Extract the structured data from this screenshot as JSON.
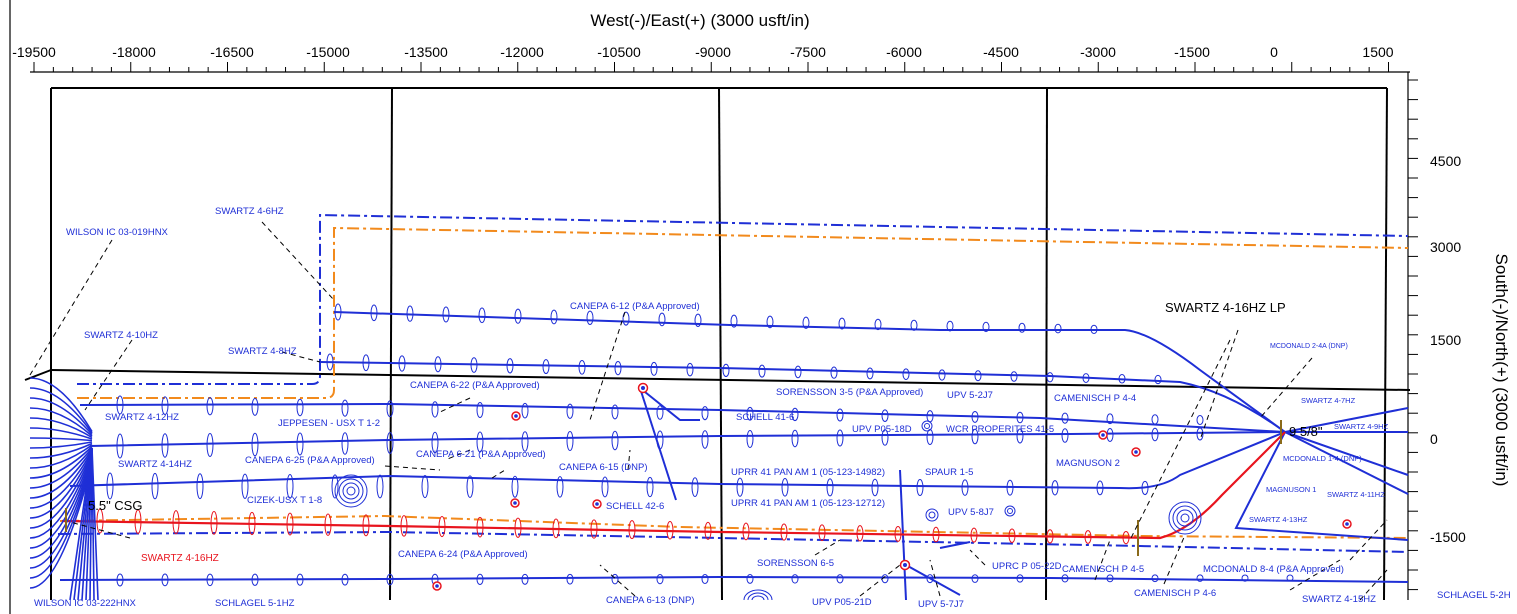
{
  "axes": {
    "top_title": "West(-)/East(+) (3000 usft/in)",
    "right_title": "South(-)/North(+) (3000 usft/in)",
    "x_ticks": [
      "-19500",
      "-18000",
      "-16500",
      "-15000",
      "-13500",
      "-12000",
      "-10500",
      "-9000",
      "-7500",
      "-6000",
      "-4500",
      "-3000",
      "-1500",
      "0",
      "1500"
    ],
    "y_ticks": [
      "4500",
      "3000",
      "1500",
      "0",
      "-1500"
    ]
  },
  "annotations": {
    "lp": "SWARTZ 4-16HZ LP",
    "casing_95": "9  5/8\"",
    "casing_55": "5.5\" CSG"
  },
  "wells": [
    {
      "id": "wilson-019",
      "label": "WILSON IC 03-019HNX"
    },
    {
      "id": "swartz-46",
      "label": "SWARTZ 4-6HZ"
    },
    {
      "id": "swartz-410",
      "label": "SWARTZ 4-10HZ"
    },
    {
      "id": "swartz-48",
      "label": "SWARTZ 4-8HZ"
    },
    {
      "id": "swartz-412",
      "label": "SWARTZ 4-12HZ"
    },
    {
      "id": "swartz-414",
      "label": "SWARTZ 4-14HZ"
    },
    {
      "id": "swartz-416",
      "label": "SWARTZ 4-16HZ"
    },
    {
      "id": "wilson-222",
      "label": "WILSON IC 03-222HNX"
    },
    {
      "id": "schlagel-51",
      "label": "SCHLAGEL  5-1HZ"
    },
    {
      "id": "jeppesen",
      "label": "JEPPESEN - USX T 1-2"
    },
    {
      "id": "canepa-625",
      "label": "CANEPA 6-25  (P&A Approved)"
    },
    {
      "id": "cizek",
      "label": "CIZEK-USX T 1-8"
    },
    {
      "id": "canepa-622",
      "label": "CANEPA 6-22 (P&A Approved)"
    },
    {
      "id": "canepa-621",
      "label": "CANEPA 6-21 (P&A Approved)"
    },
    {
      "id": "canepa-612",
      "label": "CANEPA 6-12 (P&A Approved)"
    },
    {
      "id": "canepa-615",
      "label": "CANEPA 6-15 (DNP)"
    },
    {
      "id": "schell-426",
      "label": "SCHELL  42-6"
    },
    {
      "id": "canepa-624",
      "label": "CANEPA 6-24 (P&A Approved)"
    },
    {
      "id": "canepa-613",
      "label": "CANEPA 6-13  (DNP)"
    },
    {
      "id": "schell-416",
      "label": "SCHELL 41-6"
    },
    {
      "id": "sorensson-35",
      "label": "SORENSSON 3-5  (P&A Approved)"
    },
    {
      "id": "upv-52j7",
      "label": "UPV 5-2J7"
    },
    {
      "id": "upv-p05-18d",
      "label": "UPV  P05-18D"
    },
    {
      "id": "wcr",
      "label": "WCR PROPERITES 41-5"
    },
    {
      "id": "uprr-14982",
      "label": "UPRR 41 PAN AM 1 (05-123-14982)"
    },
    {
      "id": "uprr-12712",
      "label": "UPRR 41 PAN AM 1 (05-123-12712)"
    },
    {
      "id": "spaur",
      "label": "SPAUR  1-5"
    },
    {
      "id": "upv-58j7",
      "label": "UPV  5-8J7"
    },
    {
      "id": "sorensson-65",
      "label": "SORENSSON 6-5"
    },
    {
      "id": "uprc-p05-22d",
      "label": "UPRC P 05-22D"
    },
    {
      "id": "upv-p05-21d",
      "label": "UPV P05-21D"
    },
    {
      "id": "upv-57j7",
      "label": "UPV 5-7J7"
    },
    {
      "id": "camenisch-44",
      "label": "CAMENISCH P 4-4"
    },
    {
      "id": "magnuson-2",
      "label": "MAGNUSON  2"
    },
    {
      "id": "camenisch-45",
      "label": "CAMENISCH P 4-5"
    },
    {
      "id": "camenisch-46",
      "label": "CAMENISCH P 4-6"
    },
    {
      "id": "mcdonald-24a",
      "label": "MCDONALD 2-4A (DNP)"
    },
    {
      "id": "swartz-47",
      "label": "SWARTZ 4-7HZ"
    },
    {
      "id": "swartz-49",
      "label": "SWARTZ 4-9HZ"
    },
    {
      "id": "mcdonald-14",
      "label": "MCDONALD 1-4 (DNP)"
    },
    {
      "id": "magnuson-1",
      "label": "MAGNUSON  1"
    },
    {
      "id": "swartz-411",
      "label": "SWARTZ 4-11HZ"
    },
    {
      "id": "swartz-413",
      "label": "SWARTZ 4-13HZ"
    },
    {
      "id": "mcdonald-84",
      "label": "MCDONALD 8-4  (P&A Approved)"
    },
    {
      "id": "swartz-415",
      "label": "SWARTZ 4-15HZ"
    },
    {
      "id": "schlagel-52",
      "label": "SCHLAGEL  5-2H"
    }
  ],
  "colors": {
    "well_path": "#1f2fd6",
    "target_well": "#e8141e",
    "lease_line": "#f28a1c",
    "setback_line": "#1f2fd6",
    "section_line": "#000000",
    "casing_mark": "#8a6a1a"
  }
}
